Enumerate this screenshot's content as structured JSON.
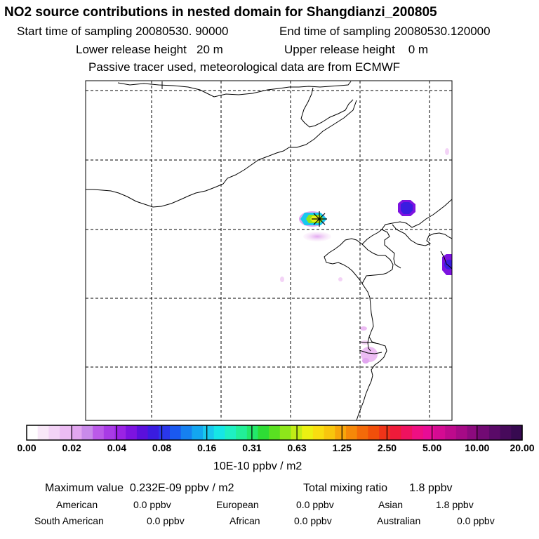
{
  "header": {
    "title": "NO2 source contributions in nested domain for Shangdianzi_200805",
    "start_time": "Start time of sampling 20080530. 90000",
    "end_time": "End time of sampling 20080530.120000",
    "lower_height": "Lower release height   20 m",
    "upper_height": "Upper release height    0 m",
    "tracer_note": "Passive tracer used, meteorological data are from ECMWF"
  },
  "colorbar": {
    "tick_labels": [
      "0.00",
      "0.02",
      "0.04",
      "0.08",
      "0.16",
      "0.31",
      "0.63",
      "1.25",
      "2.50",
      "5.00",
      "10.00",
      "20.00"
    ],
    "units": "10E-10 ppbv / m2",
    "colors": [
      "#ffffff",
      "#f8e8f8",
      "#f3d3f6",
      "#ecbcf3",
      "#e2a6f0",
      "#c98aea",
      "#bb5ae9",
      "#a93be6",
      "#9a23e4",
      "#7d13e0",
      "#5a10dc",
      "#3a1ce0",
      "#2a37ec",
      "#1a59f0",
      "#1681f0",
      "#13a6f0",
      "#18c8ee",
      "#16e6e6",
      "#1ef0c2",
      "#22ef98",
      "#23e86a",
      "#2edc35",
      "#59e021",
      "#8ee61a",
      "#c2ec16",
      "#ebf012",
      "#f8dd10",
      "#f8c60d",
      "#f7a60b",
      "#f58809",
      "#f36a09",
      "#f14f0a",
      "#ef3418",
      "#ee1b3a",
      "#ee125f",
      "#ee0f82",
      "#e80c96",
      "#d40b92",
      "#be0a8c",
      "#a60a86",
      "#8c0a7e",
      "#720a74",
      "#5a0a68",
      "#470a5b",
      "#370a50"
    ]
  },
  "stats": {
    "max_value": "Maximum value  0.232E-09 ppbv / m2",
    "total_mixing": "Total mixing ratio       1.8 ppbv",
    "regions": [
      {
        "name": "American",
        "value": "0.0 ppbv"
      },
      {
        "name": "European",
        "value": "0.0 ppbv"
      },
      {
        "name": "Asian",
        "value": "1.8 ppbv"
      },
      {
        "name": "South American",
        "value": "0.0 ppbv"
      },
      {
        "name": "African",
        "value": "0.0 ppbv"
      },
      {
        "name": "Australian",
        "value": "0.0 ppbv"
      }
    ]
  },
  "map": {
    "receptor_marker": "asterisk",
    "colors": {
      "coast": "#000000",
      "grid": "#000000",
      "frame": "#000000"
    }
  }
}
